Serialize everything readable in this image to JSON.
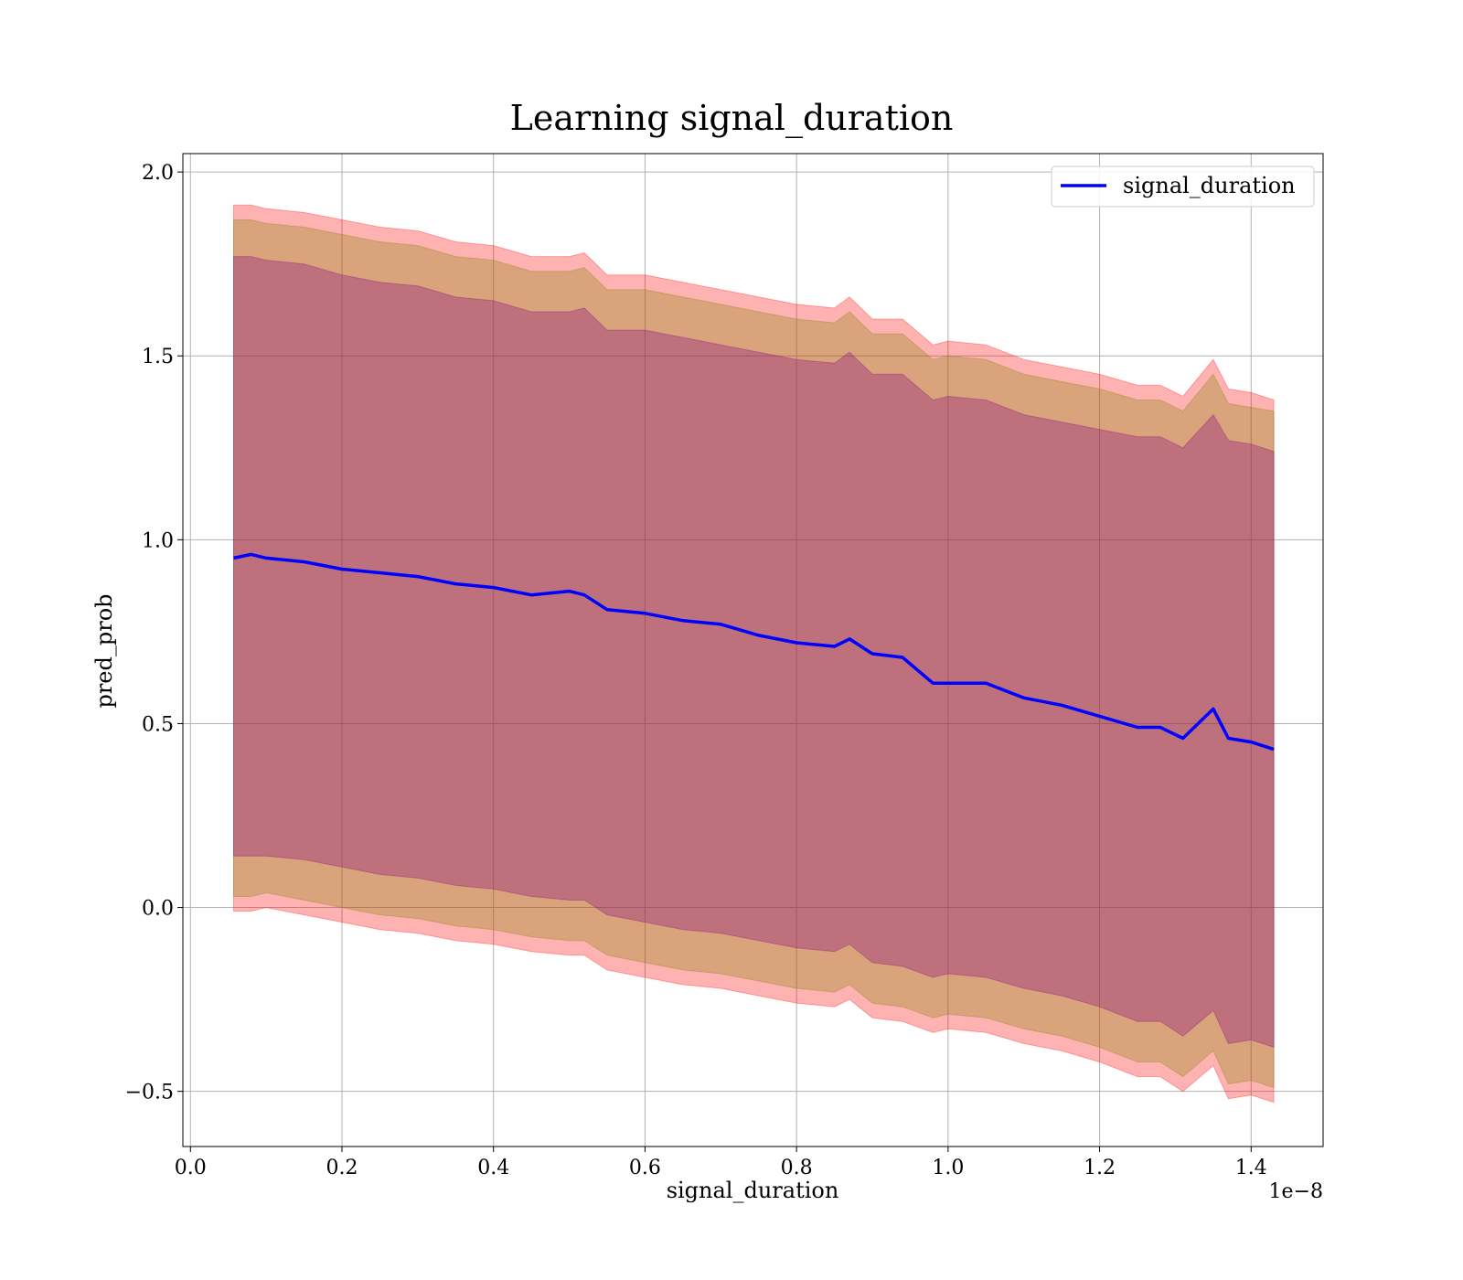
{
  "chart_data": {
    "type": "line",
    "title": "Learning signal_duration",
    "xlabel": "signal_duration",
    "ylabel": "pred_prob",
    "x_offset_label": "1e−8",
    "xlim": [
      -0.01,
      1.495
    ],
    "ylim": [
      -0.65,
      2.05
    ],
    "x_ticks": [
      0.0,
      0.2,
      0.4,
      0.6,
      0.8,
      1.0,
      1.2,
      1.4
    ],
    "x_tick_labels": [
      "0.0",
      "0.2",
      "0.4",
      "0.6",
      "0.8",
      "1.0",
      "1.2",
      "1.4"
    ],
    "y_ticks": [
      -0.5,
      0.0,
      0.5,
      1.0,
      1.5,
      2.0
    ],
    "y_tick_labels": [
      "−0.5",
      "0.0",
      "0.5",
      "1.0",
      "1.5",
      "2.0"
    ],
    "grid": true,
    "legend_position": "top-right",
    "series": [
      {
        "name": "signal_duration",
        "color": "#0000ff",
        "x": [
          0.057,
          0.08,
          0.1,
          0.15,
          0.2,
          0.25,
          0.3,
          0.35,
          0.4,
          0.45,
          0.5,
          0.52,
          0.55,
          0.6,
          0.65,
          0.7,
          0.75,
          0.8,
          0.85,
          0.87,
          0.9,
          0.94,
          0.98,
          1.0,
          1.05,
          1.1,
          1.15,
          1.2,
          1.25,
          1.28,
          1.31,
          1.35,
          1.37,
          1.4,
          1.43
        ],
        "y": [
          0.95,
          0.96,
          0.95,
          0.94,
          0.92,
          0.91,
          0.9,
          0.88,
          0.87,
          0.85,
          0.86,
          0.85,
          0.81,
          0.8,
          0.78,
          0.77,
          0.74,
          0.72,
          0.71,
          0.73,
          0.69,
          0.68,
          0.61,
          0.61,
          0.61,
          0.57,
          0.55,
          0.52,
          0.49,
          0.49,
          0.46,
          0.54,
          0.46,
          0.45,
          0.43
        ]
      }
    ],
    "bands": [
      {
        "color": "#ff0000",
        "opacity": 0.3,
        "upper": [
          1.91,
          1.91,
          1.9,
          1.89,
          1.87,
          1.85,
          1.84,
          1.81,
          1.8,
          1.77,
          1.77,
          1.78,
          1.72,
          1.72,
          1.7,
          1.68,
          1.66,
          1.64,
          1.63,
          1.66,
          1.6,
          1.6,
          1.53,
          1.54,
          1.53,
          1.49,
          1.47,
          1.45,
          1.42,
          1.42,
          1.39,
          1.49,
          1.41,
          1.4,
          1.38
        ],
        "lower": [
          -0.01,
          -0.01,
          0.0,
          -0.02,
          -0.04,
          -0.06,
          -0.07,
          -0.09,
          -0.1,
          -0.12,
          -0.13,
          -0.13,
          -0.17,
          -0.19,
          -0.21,
          -0.22,
          -0.24,
          -0.26,
          -0.27,
          -0.25,
          -0.3,
          -0.31,
          -0.34,
          -0.33,
          -0.34,
          -0.37,
          -0.39,
          -0.42,
          -0.46,
          -0.46,
          -0.5,
          -0.43,
          -0.52,
          -0.51,
          -0.53
        ]
      },
      {
        "color": "#808000",
        "opacity": 0.3,
        "upper": [
          1.87,
          1.87,
          1.86,
          1.85,
          1.83,
          1.81,
          1.8,
          1.77,
          1.76,
          1.73,
          1.73,
          1.74,
          1.68,
          1.68,
          1.66,
          1.64,
          1.62,
          1.6,
          1.59,
          1.62,
          1.56,
          1.56,
          1.49,
          1.5,
          1.49,
          1.45,
          1.43,
          1.41,
          1.38,
          1.38,
          1.35,
          1.45,
          1.37,
          1.36,
          1.35
        ],
        "lower": [
          0.03,
          0.03,
          0.04,
          0.02,
          0.0,
          -0.02,
          -0.03,
          -0.05,
          -0.06,
          -0.08,
          -0.09,
          -0.09,
          -0.13,
          -0.15,
          -0.17,
          -0.18,
          -0.2,
          -0.22,
          -0.23,
          -0.21,
          -0.26,
          -0.27,
          -0.3,
          -0.29,
          -0.3,
          -0.33,
          -0.35,
          -0.38,
          -0.42,
          -0.42,
          -0.46,
          -0.39,
          -0.48,
          -0.47,
          -0.49
        ]
      },
      {
        "color": "#800080",
        "opacity": 0.3,
        "upper": [
          1.77,
          1.77,
          1.76,
          1.75,
          1.72,
          1.7,
          1.69,
          1.66,
          1.65,
          1.62,
          1.62,
          1.63,
          1.57,
          1.57,
          1.55,
          1.53,
          1.51,
          1.49,
          1.48,
          1.51,
          1.45,
          1.45,
          1.38,
          1.39,
          1.38,
          1.34,
          1.32,
          1.3,
          1.28,
          1.28,
          1.25,
          1.34,
          1.27,
          1.26,
          1.24
        ],
        "lower": [
          0.14,
          0.14,
          0.14,
          0.13,
          0.11,
          0.09,
          0.08,
          0.06,
          0.05,
          0.03,
          0.02,
          0.02,
          -0.02,
          -0.04,
          -0.06,
          -0.07,
          -0.09,
          -0.11,
          -0.12,
          -0.1,
          -0.15,
          -0.16,
          -0.19,
          -0.18,
          -0.19,
          -0.22,
          -0.24,
          -0.27,
          -0.31,
          -0.31,
          -0.35,
          -0.28,
          -0.37,
          -0.36,
          -0.38
        ]
      }
    ]
  }
}
